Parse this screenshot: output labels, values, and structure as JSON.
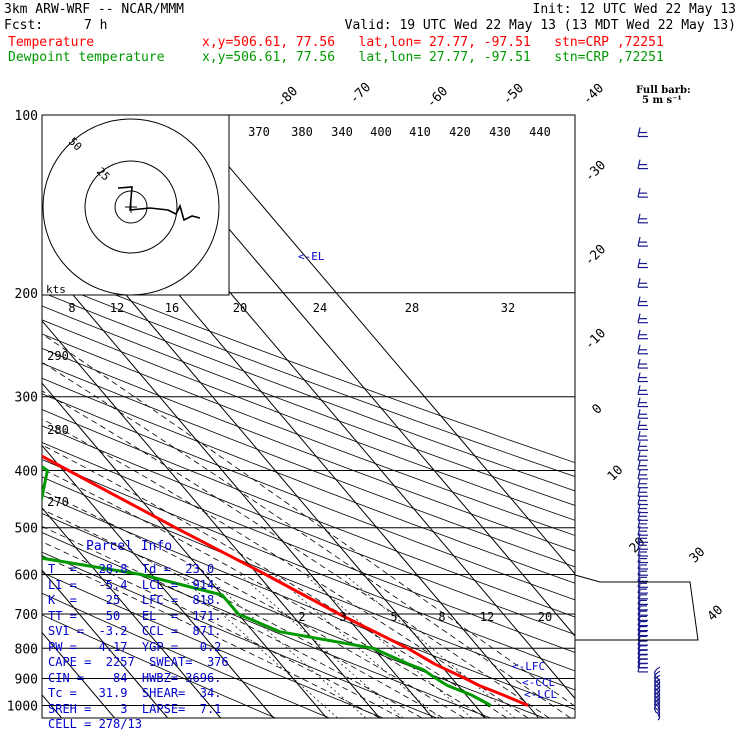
{
  "header": {
    "model": "3km ARW-WRF -- NCAR/MMM",
    "init": "Init: 12 UTC Wed 22 May 13",
    "fcst_label": "Fcst:",
    "fcst_value": "7 h",
    "valid": "Valid: 19 UTC Wed 22 May 13 (13 MDT Wed 22 May 13)",
    "temp_label": "Temperature",
    "temp_info": "x,y=506.61, 77.56   lat,lon= 27.77, -97.51   stn=CRP ,72251",
    "dew_label": "Dewpoint temperature",
    "dew_info": "x,y=506.61, 77.56   lat,lon= 27.77, -97.51   stn=CRP ,72251",
    "barb_legend_line1": "Full barb:",
    "barb_legend_line2": "5 m s⁻¹"
  },
  "colors": {
    "temperature": "#ff0000",
    "dewpoint": "#009900",
    "text_blue": "#0000cc",
    "isotherm": "#000000"
  },
  "parcel_info": {
    "title": "Parcel Info",
    "rows": [
      "T  =   28.8  Td =  23.0",
      "LI =   -5.4  LCL =  914.",
      "K  =    25   LFC =  818.",
      "TT =    50   EL  =  171.",
      "SVI =  -3.2  CCL =  871.",
      "PW =   4.17  YGP =   0.2",
      "CAPE =  2257  SWEAT=  376",
      "CIN =   -84  HWBZ= 3696.",
      "Tc =   31.9  SHEAR=  34.",
      "SREH =    3  LAPSE=  7.1",
      "CELL = 278/13"
    ]
  },
  "level_labels": {
    "el": "<-EL",
    "lfc": "<-LFC",
    "ccl": "<-CCL",
    "lcl": "<-LCL"
  },
  "hodograph": {
    "kts_label": "kts",
    "ring_labels": [
      "50",
      "25"
    ]
  },
  "chart_data": {
    "type": "line",
    "title": "",
    "ylabel": "",
    "xlabel": "",
    "y_axis": "pressure (hPa), log scale",
    "pressure_ticks": [
      100,
      200,
      300,
      400,
      500,
      600,
      700,
      800,
      900,
      1000
    ],
    "isotherm_labels": [
      "-80",
      "-70",
      "-60",
      "-50",
      "-40",
      "-30",
      "-20",
      "-10",
      "0",
      "10",
      "20",
      "30",
      "40"
    ],
    "theta_labels": [
      "370",
      "380",
      "340",
      "400",
      "410",
      "420",
      "430",
      "440"
    ],
    "theta_labels_low": [
      "290",
      "280",
      "270"
    ],
    "mixing_ratio_labels_top": [
      "8",
      "12",
      "16",
      "20",
      "24",
      "28",
      "32"
    ],
    "mixing_ratio_labels_low": [
      "2",
      "3",
      "5",
      "8",
      "12",
      "20"
    ],
    "series": [
      {
        "name": "Temperature",
        "color": "#ff0000",
        "points": [
          [
            1000,
            30
          ],
          [
            960,
            27
          ],
          [
            925,
            24
          ],
          [
            900,
            22.5
          ],
          [
            850,
            19
          ],
          [
            800,
            16.5
          ],
          [
            700,
            9
          ],
          [
            600,
            1.5
          ],
          [
            500,
            -8
          ],
          [
            400,
            -19
          ],
          [
            300,
            -33
          ],
          [
            250,
            -42
          ],
          [
            200,
            -53
          ],
          [
            175,
            -59
          ],
          [
            150,
            -64
          ],
          [
            125,
            -68
          ],
          [
            100,
            -72
          ]
        ]
      },
      {
        "name": "Dewpoint temperature",
        "color": "#009900",
        "points": [
          [
            1000,
            23
          ],
          [
            960,
            21
          ],
          [
            925,
            18
          ],
          [
            900,
            17
          ],
          [
            870,
            16
          ],
          [
            850,
            14
          ],
          [
            800,
            10
          ],
          [
            750,
            -5
          ],
          [
            700,
            -10
          ],
          [
            650,
            -10
          ],
          [
            600,
            -22
          ],
          [
            550,
            -44
          ],
          [
            510,
            -52
          ],
          [
            450,
            -29
          ],
          [
            400,
            -23
          ],
          [
            350,
            -27
          ],
          [
            300,
            -36
          ],
          [
            250,
            -48
          ],
          [
            220,
            -54
          ],
          [
            200,
            -54
          ],
          [
            170,
            -56
          ],
          [
            140,
            -62
          ],
          [
            120,
            -67
          ],
          [
            100,
            -73
          ]
        ]
      }
    ]
  }
}
